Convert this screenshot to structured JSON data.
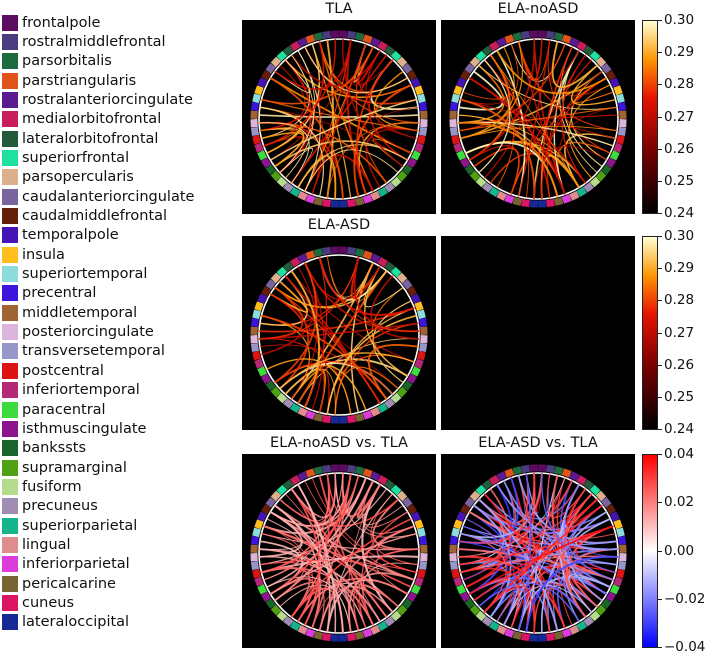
{
  "regions": [
    {
      "name": "frontalpole",
      "color": "#5b0c60"
    },
    {
      "name": "rostralmiddlefrontal",
      "color": "#4b3c80"
    },
    {
      "name": "parsorbitalis",
      "color": "#1c6c40"
    },
    {
      "name": "parstriangularis",
      "color": "#e0541c"
    },
    {
      "name": "rostralanteriorcingulate",
      "color": "#5a1a90"
    },
    {
      "name": "medialorbitofrontal",
      "color": "#c81d5d"
    },
    {
      "name": "lateralorbitofrontal",
      "color": "#225a3a"
    },
    {
      "name": "superiorfrontal",
      "color": "#1ee1a0"
    },
    {
      "name": "parsopercularis",
      "color": "#dcb08c"
    },
    {
      "name": "caudalanteriorcingulate",
      "color": "#7a64a0"
    },
    {
      "name": "caudalmiddlefrontal",
      "color": "#641e0a"
    },
    {
      "name": "temporalpole",
      "color": "#4614b4"
    },
    {
      "name": "insula",
      "color": "#ffbe1e"
    },
    {
      "name": "superiortemporal",
      "color": "#8cdcdc"
    },
    {
      "name": "precentral",
      "color": "#3c14dc"
    },
    {
      "name": "middletemporal",
      "color": "#a06432"
    },
    {
      "name": "posteriorcingulate",
      "color": "#dcb4dc"
    },
    {
      "name": "transversetemporal",
      "color": "#9696c8"
    },
    {
      "name": "postcentral",
      "color": "#dc1414"
    },
    {
      "name": "inferiortemporal",
      "color": "#b42878"
    },
    {
      "name": "paracentral",
      "color": "#3cdc3c"
    },
    {
      "name": "isthmuscingulate",
      "color": "#8c148c"
    },
    {
      "name": "bankssts",
      "color": "#196428"
    },
    {
      "name": "supramarginal",
      "color": "#50a014"
    },
    {
      "name": "fusiform",
      "color": "#b4dc8c"
    },
    {
      "name": "precuneus",
      "color": "#a08cb4"
    },
    {
      "name": "superiorparietal",
      "color": "#14b48c"
    },
    {
      "name": "lingual",
      "color": "#e18c8c"
    },
    {
      "name": "inferiorparietal",
      "color": "#dc3cdc"
    },
    {
      "name": "pericalcarine",
      "color": "#786432"
    },
    {
      "name": "cuneus",
      "color": "#dc1464"
    },
    {
      "name": "lateraloccipital",
      "color": "#142896"
    }
  ],
  "panels": [
    {
      "title": "TLA",
      "scheme": "hot",
      "n": 70,
      "seed": 3
    },
    {
      "title": "ELA-noASD",
      "scheme": "hot",
      "n": 70,
      "seed": 7
    },
    {
      "title": "ELA-ASD",
      "scheme": "hot",
      "n": 60,
      "seed": 11
    },
    {
      "title": "",
      "scheme": "empty",
      "n": 0,
      "seed": 0
    },
    {
      "title": "ELA-noASD vs. TLA",
      "scheme": "pos",
      "n": 90,
      "seed": 19
    },
    {
      "title": "ELA-ASD vs. TLA",
      "scheme": "diverge",
      "n": 140,
      "seed": 23
    }
  ],
  "colorbars": [
    {
      "scheme": "hot",
      "ticks": [
        "0.30",
        "0.29",
        "0.28",
        "0.27",
        "0.26",
        "0.25",
        "0.24"
      ]
    },
    {
      "scheme": "hot",
      "ticks": [
        "0.30",
        "0.29",
        "0.28",
        "0.27",
        "0.26",
        "0.25",
        "0.24"
      ]
    },
    {
      "scheme": "diverge",
      "ticks": [
        "0.04",
        "0.02",
        "0.00",
        "−0.02",
        "−0.04"
      ]
    }
  ]
}
